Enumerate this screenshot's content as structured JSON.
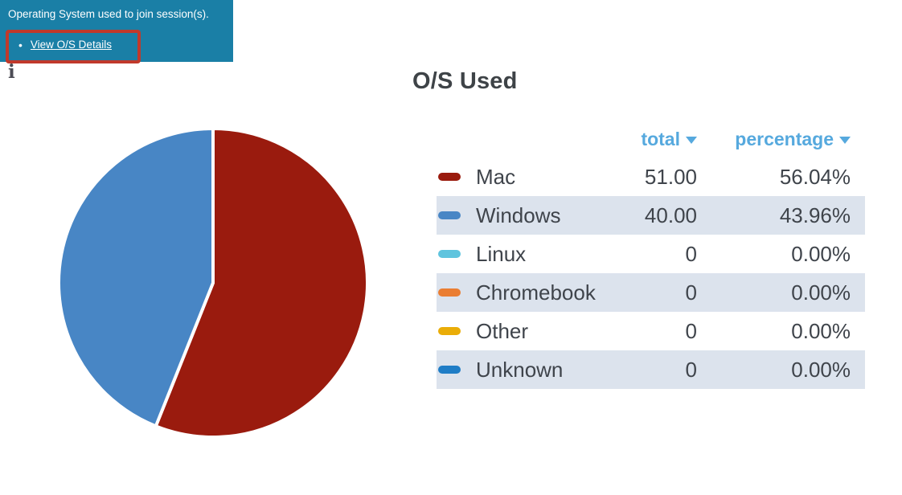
{
  "tooltip": {
    "text": "Operating System used to join session(s).",
    "bullet": "•",
    "link_label": "View O/S Details",
    "bg_color": "#1a7fa6",
    "highlight_border_color": "#c0392b"
  },
  "info_icon_glyph": "i",
  "chart": {
    "title": "O/S Used"
  },
  "chart_data": {
    "type": "pie",
    "title": "O/S Used",
    "categories": [
      "Mac",
      "Windows",
      "Linux",
      "Chromebook",
      "Other",
      "Unknown"
    ],
    "values": [
      51.0,
      40.0,
      0,
      0,
      0,
      0
    ],
    "percentages": [
      56.04,
      43.96,
      0.0,
      0.0,
      0.0,
      0.0
    ],
    "colors": [
      "#9a1b0e",
      "#4886c5",
      "#5fc4de",
      "#ea7e33",
      "#eaad08",
      "#1f7dc6"
    ],
    "start_angle_deg": -90,
    "direction": "clockwise",
    "slice_gap_color": "#ffffff",
    "legend_position": "right-table"
  },
  "table": {
    "headers": [
      {
        "label": "total"
      },
      {
        "label": "percentage"
      }
    ],
    "header_color": "#56a9de",
    "zebra_color": "#dce3ed",
    "rows": [
      {
        "label": "Mac",
        "swatch": "#9a1b0e",
        "total": "51.00",
        "percentage": "56.04%"
      },
      {
        "label": "Windows",
        "swatch": "#4886c5",
        "total": "40.00",
        "percentage": "43.96%"
      },
      {
        "label": "Linux",
        "swatch": "#5fc4de",
        "total": "0",
        "percentage": "0.00%"
      },
      {
        "label": "Chromebook",
        "swatch": "#ea7e33",
        "total": "0",
        "percentage": "0.00%"
      },
      {
        "label": "Other",
        "swatch": "#eaad08",
        "total": "0",
        "percentage": "0.00%"
      },
      {
        "label": "Unknown",
        "swatch": "#1f7dc6",
        "total": "0",
        "percentage": "0.00%"
      }
    ]
  }
}
